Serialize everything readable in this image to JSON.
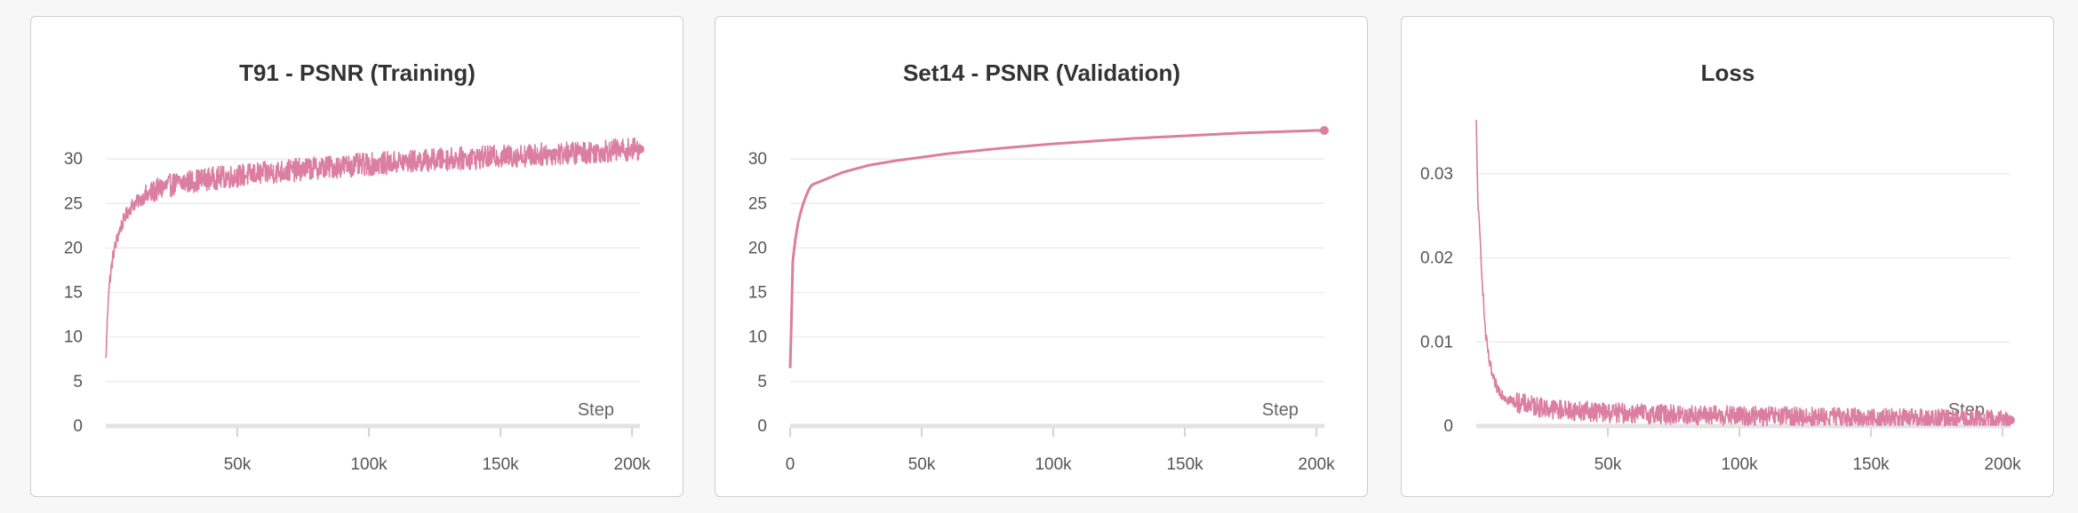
{
  "chart_data": [
    {
      "type": "line",
      "title": "T91 - PSNR (Training)",
      "xlabel": "Step",
      "ylabel": "",
      "xlim": [
        0,
        203000
      ],
      "ylim": [
        0,
        34
      ],
      "yticks": [
        0,
        5,
        10,
        15,
        20,
        25,
        30
      ],
      "ytick_labels": [
        "0",
        "5",
        "10",
        "15",
        "20",
        "25",
        "30"
      ],
      "xticks": [
        50000,
        100000,
        150000,
        200000
      ],
      "xtick_labels": [
        "50k",
        "100k",
        "150k",
        "200k"
      ],
      "grid": true,
      "color": "#db7e9f",
      "series": [
        {
          "x": [
            0,
            1000,
            2000,
            3000,
            5000,
            7500,
            10000,
            15000,
            20000,
            25000,
            30000,
            40000,
            50000,
            60000,
            70000,
            80000,
            90000,
            100000,
            110000,
            120000,
            130000,
            140000,
            150000,
            160000,
            170000,
            180000,
            190000,
            200000,
            203000
          ],
          "values": [
            7.3,
            15.0,
            17.5,
            19.5,
            21.8,
            23.6,
            24.8,
            25.8,
            26.6,
            27.1,
            27.4,
            27.8,
            28.1,
            28.4,
            28.7,
            29.0,
            29.2,
            29.4,
            29.6,
            29.8,
            30.0,
            30.1,
            30.3,
            30.4,
            30.6,
            30.7,
            30.9,
            31.1,
            31.1
          ],
          "noise": 1.3
        }
      ]
    },
    {
      "type": "line",
      "title": "Set14 - PSNR (Validation)",
      "xlabel": "Step",
      "ylabel": "",
      "xlim": [
        0,
        203000
      ],
      "ylim": [
        0,
        34
      ],
      "yticks": [
        0,
        5,
        10,
        15,
        20,
        25,
        30
      ],
      "ytick_labels": [
        "0",
        "5",
        "10",
        "15",
        "20",
        "25",
        "30"
      ],
      "xticks": [
        0,
        50000,
        100000,
        150000,
        200000
      ],
      "xtick_labels": [
        "0",
        "50k",
        "100k",
        "150k",
        "200k"
      ],
      "grid": true,
      "color": "#db7e9f",
      "series": [
        {
          "x": [
            0,
            500,
            1000,
            2000,
            3000,
            4000,
            5000,
            6000,
            7000,
            8000,
            9000,
            10000,
            15000,
            20000,
            30000,
            40000,
            50000,
            60000,
            70000,
            80000,
            90000,
            100000,
            110000,
            120000,
            130000,
            140000,
            150000,
            160000,
            170000,
            180000,
            190000,
            200000,
            203000
          ],
          "values": [
            6.5,
            12.0,
            18.5,
            21.0,
            22.8,
            24.0,
            25.0,
            25.8,
            26.5,
            27.0,
            27.2,
            27.3,
            27.9,
            28.5,
            29.3,
            29.8,
            30.2,
            30.6,
            30.9,
            31.2,
            31.45,
            31.7,
            31.9,
            32.1,
            32.3,
            32.45,
            32.6,
            32.75,
            32.9,
            33.0,
            33.1,
            33.2,
            33.2
          ],
          "noise": 0
        }
      ]
    },
    {
      "type": "line",
      "title": "Loss",
      "xlabel": "Step",
      "ylabel": "",
      "xlim": [
        0,
        203000
      ],
      "ylim": [
        0,
        0.036
      ],
      "yticks": [
        0,
        0.01,
        0.02,
        0.03
      ],
      "ytick_labels": [
        "0",
        "0.01",
        "0.02",
        "0.03"
      ],
      "xticks": [
        50000,
        100000,
        150000,
        200000
      ],
      "xtick_labels": [
        "50k",
        "100k",
        "150k",
        "200k"
      ],
      "grid": true,
      "color": "#db7e9f",
      "series": [
        {
          "x": [
            0,
            300,
            700,
            1500,
            2500,
            3500,
            5000,
            6500,
            8000,
            10000,
            12000,
            15000,
            20000,
            25000,
            30000,
            40000,
            50000,
            60000,
            80000,
            100000,
            120000,
            140000,
            160000,
            180000,
            200000,
            203000
          ],
          "values": [
            0.036,
            0.031,
            0.026,
            0.022,
            0.016,
            0.011,
            0.0075,
            0.0055,
            0.0045,
            0.0038,
            0.0032,
            0.0028,
            0.0025,
            0.0022,
            0.002,
            0.0018,
            0.0016,
            0.0015,
            0.0013,
            0.0012,
            0.0011,
            0.001,
            0.0009,
            0.0008,
            0.0007,
            0.0007
          ],
          "noise": 0.0012
        }
      ]
    }
  ]
}
